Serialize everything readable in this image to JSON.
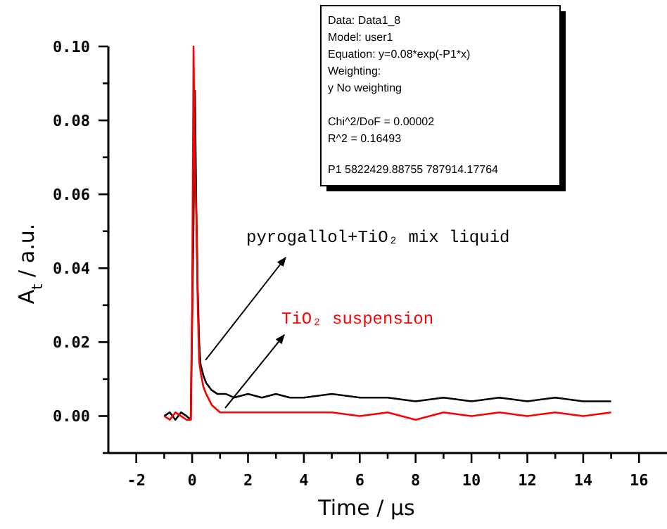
{
  "chart_data": {
    "type": "line",
    "xlabel": "Time / μs",
    "ylabel": "A$_{t}$ / a.u.",
    "xlim": [
      -3,
      17
    ],
    "xticks": [
      -2,
      {
        "value": -1,
        "label": null
      },
      0,
      {
        "value": 1,
        "label": null
      },
      2,
      {
        "value": 3,
        "label": null
      },
      4,
      {
        "value": 5,
        "label": null
      },
      6,
      {
        "value": 7,
        "label": null
      },
      8,
      {
        "value": 9,
        "label": null
      },
      10,
      {
        "value": 11,
        "label": null
      },
      12,
      {
        "value": 13,
        "label": null
      },
      14,
      {
        "value": 15,
        "label": null
      },
      16
    ],
    "ylim": [
      -0.01,
      0.1
    ],
    "yticks": [
      {
        "value": -0.01,
        "label": null
      },
      {
        "value": 0,
        "label": "0.00"
      },
      {
        "value": 0.01,
        "label": null
      },
      {
        "value": 0.02,
        "label": "0.02"
      },
      {
        "value": 0.03,
        "label": null
      },
      {
        "value": 0.04,
        "label": "0.04"
      },
      {
        "value": 0.05,
        "label": null
      },
      {
        "value": 0.06,
        "label": "0.06"
      },
      {
        "value": 0.07,
        "label": null
      },
      {
        "value": 0.08,
        "label": "0.08"
      },
      {
        "value": 0.09,
        "label": null
      },
      {
        "value": 0.1,
        "label": "0.10"
      }
    ],
    "grid": false,
    "marker": "none",
    "line_style": "solid",
    "series": [
      {
        "name": "pyrogallol+TiO₂ mix liquid",
        "color": "#000000",
        "x": [
          -1,
          -0.8,
          -0.6,
          -0.4,
          -0.2,
          -0.05,
          0.05,
          0.1,
          0.15,
          0.2,
          0.25,
          0.3,
          0.4,
          0.5,
          0.7,
          0.9,
          1.2,
          1.5,
          2,
          2.5,
          3,
          3.5,
          4,
          5,
          6,
          7,
          8,
          9,
          10,
          11,
          12,
          13,
          14,
          15
        ],
        "values": [
          0,
          0.001,
          -0.001,
          0.001,
          0,
          -0.001,
          0.053,
          0.088,
          0.055,
          0.034,
          0.02,
          0.014,
          0.011,
          0.009,
          0.007,
          0.006,
          0.006,
          0.005,
          0.006,
          0.005,
          0.006,
          0.005,
          0.005,
          0.006,
          0.005,
          0.005,
          0.004,
          0.005,
          0.004,
          0.005,
          0.004,
          0.005,
          0.004,
          0.004
        ]
      },
      {
        "name": "TiO₂ suspension",
        "color": "#ff0000",
        "x": [
          -1,
          -0.8,
          -0.6,
          -0.4,
          -0.2,
          -0.05,
          0,
          0.05,
          0.1,
          0.15,
          0.2,
          0.25,
          0.3,
          0.4,
          0.5,
          0.7,
          1,
          1.5,
          2,
          3,
          4,
          5,
          6,
          7,
          8,
          9,
          10,
          11,
          12,
          13,
          14,
          15
        ],
        "values": [
          0,
          -0.001,
          0.001,
          0,
          -0.001,
          -0.001,
          0.03,
          0.1,
          0.065,
          0.055,
          0.03,
          0.015,
          0.012,
          0.008,
          0.006,
          0.003,
          0.001,
          0.001,
          0.001,
          0.001,
          0.001,
          0.001,
          0,
          0.001,
          -0.001,
          0.001,
          0,
          0.001,
          0,
          0.001,
          0,
          0.001
        ]
      }
    ],
    "annotations": [
      "Data: Data1_8",
      "Model: user1",
      "Equation: y=0.08*exp(-P1*x)",
      "Weighting:",
      "y      No weighting",
      "Chi^2/DoF    = 0.00002",
      "R^2   = 0.16493",
      "P1     5822429.88755 787914.17764"
    ]
  }
}
